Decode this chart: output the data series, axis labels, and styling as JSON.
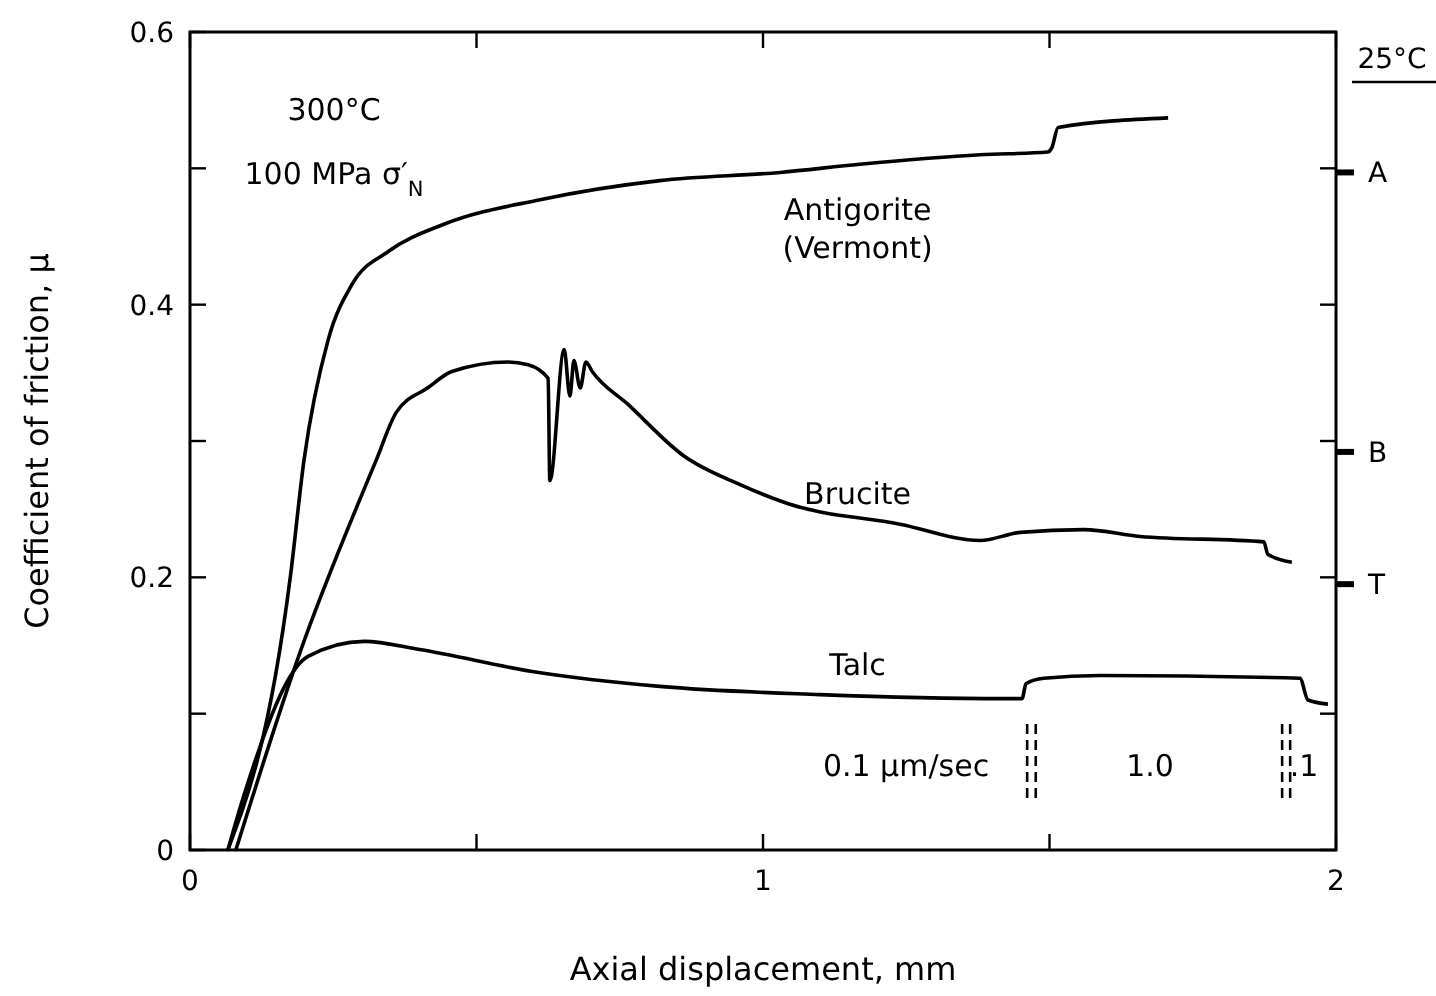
{
  "chart_data": {
    "type": "line",
    "xlabel": "Axial displacement, mm",
    "ylabel": "Coefficient of friction, μ",
    "xlim": [
      0,
      2
    ],
    "xticks": [
      0,
      {
        "value": 0.5,
        "label": null
      },
      1,
      {
        "value": 1.5,
        "label": null
      },
      2
    ],
    "ylim": [
      0,
      0.6
    ],
    "yticks": [
      0,
      {
        "value": 0.1,
        "label": null
      },
      0.2,
      {
        "value": 0.3,
        "label": null
      },
      0.4,
      {
        "value": 0.5,
        "label": null
      },
      0.6
    ],
    "grid": false,
    "legend": false,
    "marker": "none",
    "line_style": "solid",
    "series": [
      {
        "name": "Antigorite (Vermont)",
        "color": "#000000",
        "x": [
          0.066,
          0.175,
          0.199,
          0.241,
          0.283,
          0.346,
          0.443,
          0.611,
          0.82,
          1.03,
          1.169,
          1.379,
          1.497,
          1.504,
          1.515,
          1.707
        ],
        "values": [
          0,
          0.2,
          0.286,
          0.374,
          0.415,
          0.439,
          0.459,
          0.477,
          0.491,
          0.497,
          0.503,
          0.51,
          0.512,
          0.515,
          0.53,
          0.537
        ]
      },
      {
        "name": "Brucite",
        "color": "#000000",
        "x": [
          0.08,
          0.192,
          0.325,
          0.36,
          0.415,
          0.457,
          0.555,
          0.59,
          0.625,
          0.628,
          0.653,
          0.663,
          0.67,
          0.681,
          0.691,
          0.702,
          0.764,
          0.862,
          0.96,
          1.044,
          1.239,
          1.379,
          1.449,
          1.56,
          1.658,
          1.874,
          1.881,
          1.923
        ],
        "values": [
          0,
          0.145,
          0.286,
          0.321,
          0.339,
          0.351,
          0.358,
          0.356,
          0.346,
          0.271,
          0.367,
          0.333,
          0.359,
          0.339,
          0.358,
          0.351,
          0.327,
          0.289,
          0.268,
          0.254,
          0.239,
          0.227,
          0.233,
          0.235,
          0.23,
          0.226,
          0.217,
          0.211
        ]
      },
      {
        "name": "Talc",
        "color": "#000000",
        "x": [
          0.066,
          0.094,
          0.206,
          0.304,
          0.401,
          0.597,
          0.82,
          1.099,
          1.421,
          1.452,
          1.459,
          1.49,
          1.588,
          1.937,
          1.951,
          1.986
        ],
        "values": [
          0,
          0.04,
          0.142,
          0.153,
          0.147,
          0.131,
          0.12,
          0.114,
          0.111,
          0.111,
          0.122,
          0.126,
          0.128,
          0.126,
          0.11,
          0.107
        ]
      }
    ],
    "ref_lines": [
      {
        "axis": "x",
        "value": 1.461,
        "line_style": "dashed",
        "color": "#000000"
      },
      {
        "axis": "x",
        "value": 1.476,
        "line_style": "dashed",
        "color": "#000000"
      },
      {
        "axis": "x",
        "value": 1.906,
        "line_style": "dashed",
        "color": "#000000"
      },
      {
        "axis": "x",
        "value": 1.92,
        "line_style": "dashed",
        "color": "#000000"
      },
      {
        "axis": "y",
        "value": 0.497,
        "label": "A",
        "color": "#000000"
      },
      {
        "axis": "y",
        "value": 0.292,
        "label": "B",
        "color": "#000000"
      },
      {
        "axis": "y",
        "value": 0.195,
        "label": "T",
        "color": "#000000"
      }
    ],
    "annotations": [
      "300°C",
      "100 MPa σ′$_{N}$",
      "0.1 µm/sec",
      "1.0",
      ".1",
      "25°C"
    ]
  }
}
